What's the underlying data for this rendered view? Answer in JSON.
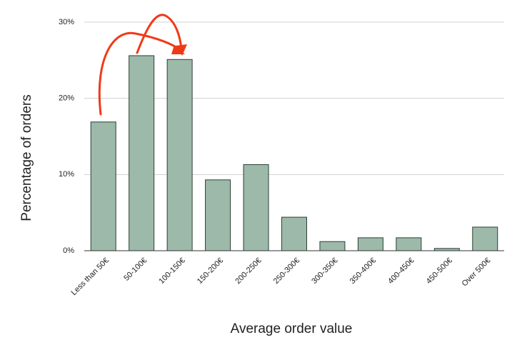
{
  "chart_data": {
    "type": "bar",
    "x_label": "Average order value",
    "y_label": "Percentage of orders",
    "categories": [
      "Less than 50€",
      "50-100€",
      "100-150€",
      "150-200€",
      "200-250€",
      "250-300€",
      "300-350€",
      "350-400€",
      "400-450€",
      "450-500€",
      "Over 500€"
    ],
    "values": [
      16.9,
      25.6,
      25.1,
      9.3,
      11.3,
      4.4,
      1.2,
      1.7,
      1.7,
      0.3,
      3.1
    ],
    "color": "#9db9a9",
    "ylim": [
      0,
      30
    ],
    "yticks": [
      {
        "value": 0,
        "label": "0%"
      },
      {
        "value": 10,
        "label": "10%"
      },
      {
        "value": 20,
        "label": "20%"
      },
      {
        "value": 30,
        "label": "30%"
      }
    ],
    "grid": true
  }
}
